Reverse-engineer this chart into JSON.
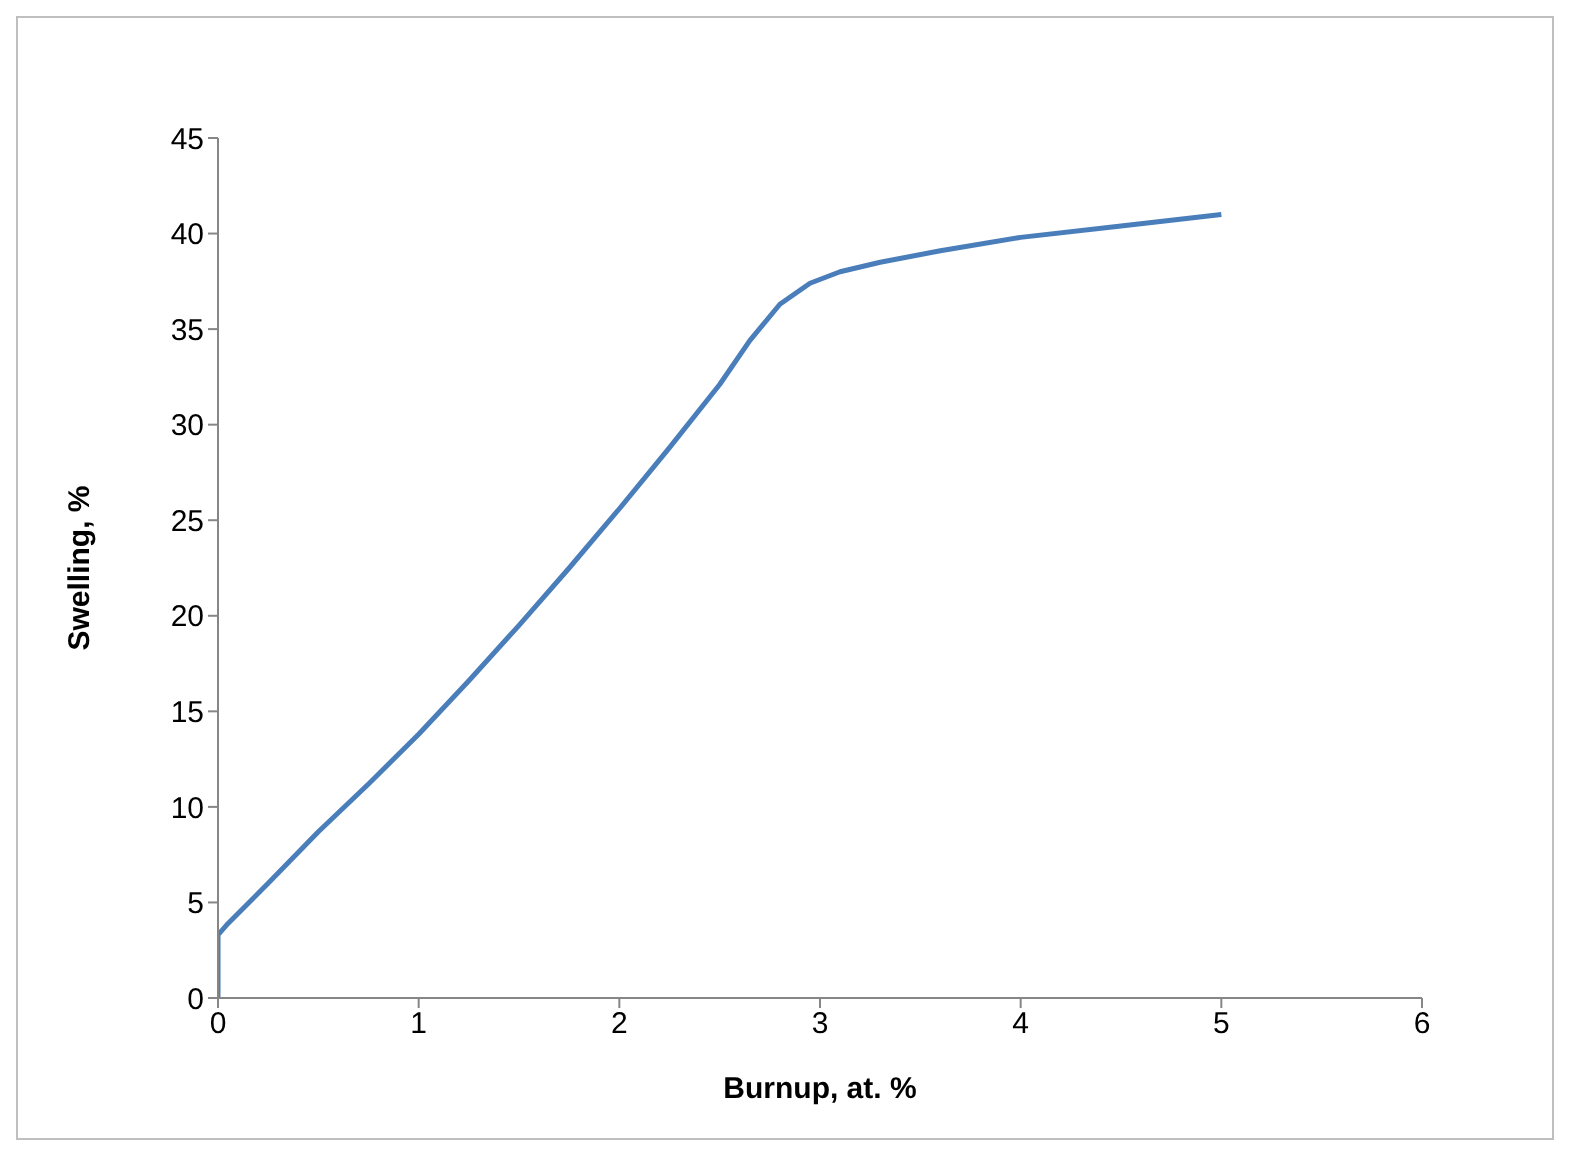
{
  "chart_data": {
    "type": "line",
    "xlabel": "Burnup, at. %",
    "ylabel": "Swelling, %",
    "x": [
      0,
      0,
      0.05,
      0.25,
      0.5,
      0.75,
      1,
      1.25,
      1.5,
      1.75,
      2,
      2.25,
      2.5,
      2.65,
      2.8,
      2.95,
      3.1,
      3.3,
      3.6,
      4,
      4.5,
      5
    ],
    "series": [
      {
        "color": "#4a7ebb",
        "values": [
          0,
          3.3,
          3.9,
          6,
          8.7,
          11.2,
          13.8,
          16.6,
          19.5,
          22.5,
          25.6,
          28.8,
          32.1,
          34.4,
          36.3,
          37.4,
          38,
          38.5,
          39.1,
          39.8,
          40.4,
          41
        ]
      }
    ],
    "xlim": [
      0,
      6
    ],
    "xticks": [
      0,
      1,
      2,
      3,
      4,
      5,
      6
    ],
    "ylim": [
      0,
      45
    ],
    "yticks": [
      0,
      5,
      10,
      15,
      20,
      25,
      30,
      35,
      40,
      45
    ],
    "grid": false,
    "legend": false,
    "marker": "none",
    "line_style": "solid"
  }
}
